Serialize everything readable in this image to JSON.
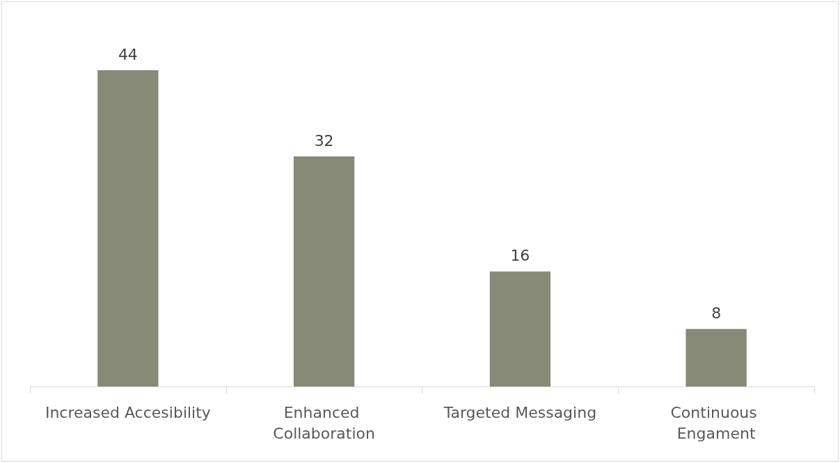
{
  "chart_data": {
    "type": "bar",
    "categories": [
      "Increased Accesibility",
      "Enhanced Collaboration",
      "Targeted Messaging",
      "Continuous Engament"
    ],
    "values": [
      44,
      32,
      16,
      8
    ],
    "color": "#868a76",
    "data_labels": true
  }
}
